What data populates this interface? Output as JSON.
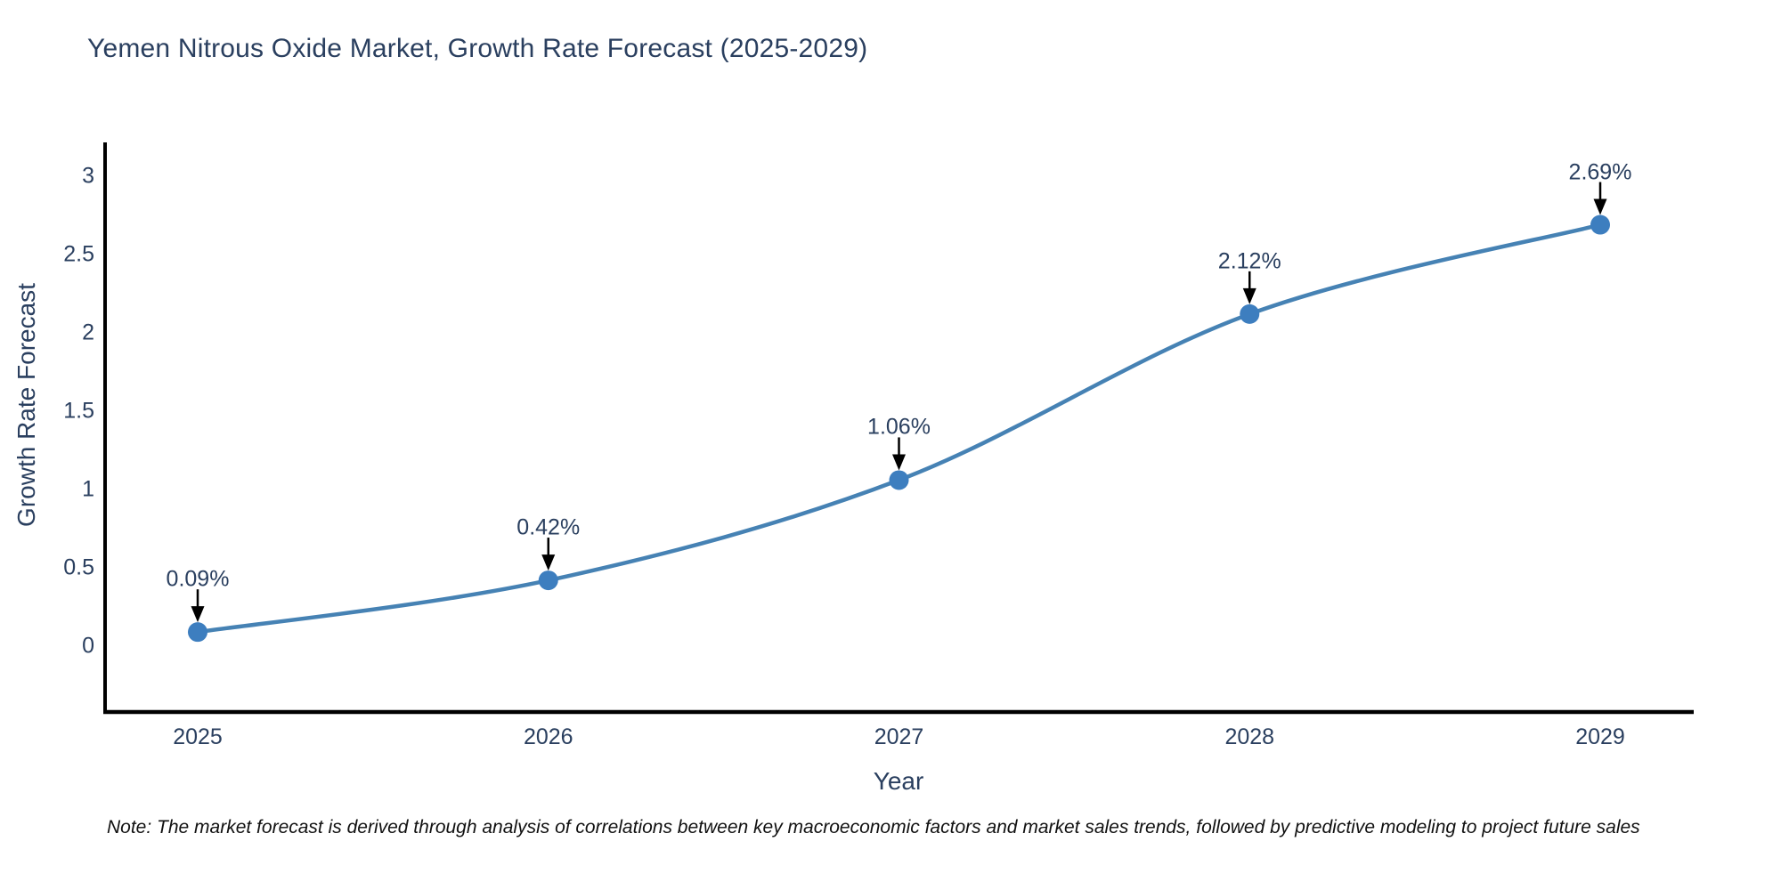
{
  "title": "Yemen Nitrous Oxide Market, Growth Rate Forecast (2025-2029)",
  "note": "Note: The market forecast is derived through analysis of correlations between key macroeconomic factors and market sales trends, followed by predictive modeling to project future sales",
  "chart_data": {
    "type": "line",
    "title": "Yemen Nitrous Oxide Market, Growth Rate Forecast (2025-2029)",
    "xlabel": "Year",
    "ylabel": "Growth Rate Forecast",
    "x": [
      2025,
      2026,
      2027,
      2028,
      2029
    ],
    "values": [
      0.09,
      0.42,
      1.06,
      2.12,
      2.69
    ],
    "point_labels": [
      "0.09%",
      "0.42%",
      "1.06%",
      "2.12%",
      "2.69%"
    ],
    "x_ticks": [
      "2025",
      "2026",
      "2027",
      "2028",
      "2029"
    ],
    "y_ticks": [
      "0",
      "0.5",
      "1",
      "1.5",
      "2",
      "2.5",
      "3"
    ],
    "ylim": [
      -0.42,
      3.22
    ],
    "grid": false,
    "legend": "none",
    "line_shape": "spline",
    "line_color": "#4682b4",
    "marker_color": "#3d7ebf",
    "annotation_arrow_color": "#000000",
    "axis_color": "#000000",
    "text_color": "#2a3f5f"
  }
}
